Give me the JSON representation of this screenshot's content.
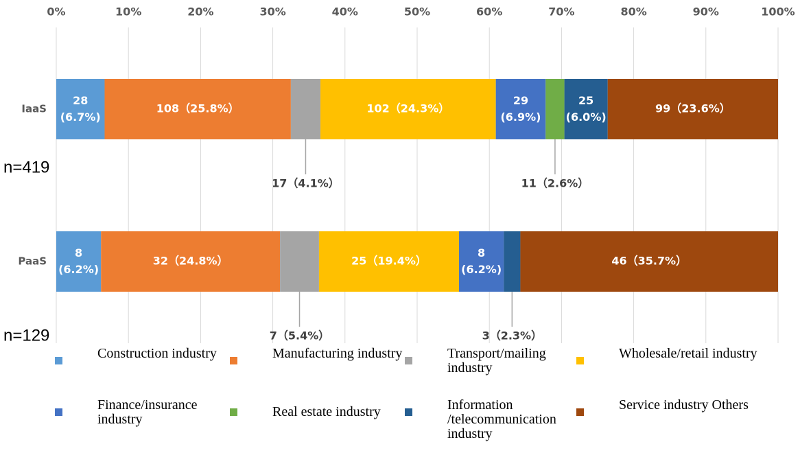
{
  "chart_data": {
    "type": "stacked_bar_h",
    "categories": [
      "IaaS",
      "PaaS"
    ],
    "n_labels": [
      "n=419",
      "n=129"
    ],
    "xlim": [
      0,
      100
    ],
    "xticks": [
      {
        "value": 0,
        "label": "0%"
      },
      {
        "value": 10,
        "label": "10%"
      },
      {
        "value": 20,
        "label": "20%"
      },
      {
        "value": 30,
        "label": "30%"
      },
      {
        "value": 40,
        "label": "40%"
      },
      {
        "value": 50,
        "label": "50%"
      },
      {
        "value": 60,
        "label": "60%"
      },
      {
        "value": 70,
        "label": "70%"
      },
      {
        "value": 80,
        "label": "80%"
      },
      {
        "value": 90,
        "label": "90%"
      },
      {
        "value": 100,
        "label": "100%"
      }
    ],
    "grid": true,
    "series": [
      {
        "name": "Construction industry",
        "color": "#5b9bd5",
        "values": [
          6.7,
          6.2
        ],
        "value_labels": [
          "28(6.7%)",
          "8(6.2%)"
        ]
      },
      {
        "name": "Manufacturing industry",
        "color": "#ed7d31",
        "values": [
          25.8,
          24.8
        ],
        "value_labels": [
          "108（25.8%）",
          "32（24.8%）"
        ]
      },
      {
        "name": "Transport/mailing industry",
        "color": "#a5a5a5",
        "values": [
          4.1,
          5.4
        ],
        "value_labels": [
          "17（4.1%）",
          "7（5.4%）"
        ]
      },
      {
        "name": "Wholesale/retail industry",
        "color": "#ffc000",
        "values": [
          24.3,
          19.4
        ],
        "value_labels": [
          "102（24.3%）",
          "25（19.4%）"
        ]
      },
      {
        "name": "Finance/insurance industry",
        "color": "#4472c4",
        "values": [
          6.9,
          6.2
        ],
        "value_labels": [
          "29(6.9%)",
          "8(6.2%)"
        ]
      },
      {
        "name": "Real estate industry",
        "color": "#70ad47",
        "values": [
          2.6,
          0
        ],
        "value_labels": [
          "11（2.6%）",
          null
        ]
      },
      {
        "name": "Information /telecommunication industry",
        "color": "#255e91",
        "values": [
          6.0,
          2.3
        ],
        "value_labels": [
          "25(6.0%)",
          "3（2.3%）"
        ]
      },
      {
        "name": "Service industry Others",
        "color": "#9e480e",
        "values": [
          23.6,
          35.7
        ],
        "value_labels": [
          "99（23.6%）",
          "46（35.7%）"
        ]
      }
    ]
  }
}
